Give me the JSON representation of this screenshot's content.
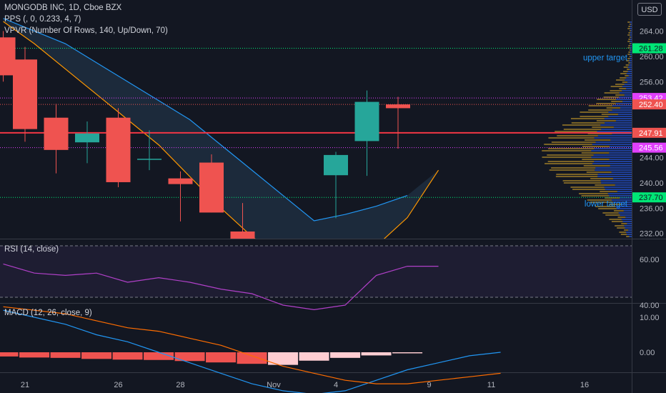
{
  "main_pane": {
    "title": "MONGODB INC, 1D, Cboe BZX",
    "indicators": [
      "PPS (, 0, 0.233, 4, 7)",
      "VPVR (Number Of Rows, 140, Up/Down, 70)"
    ],
    "currency": "USD",
    "y_ticks": [
      264.0,
      260.0,
      256.0,
      244.0,
      240.0,
      236.0,
      232.0
    ],
    "price_labels": [
      {
        "value": 261.28,
        "text": "261.28",
        "bg": "#00e676",
        "fg": "#131722"
      },
      {
        "value": 253.42,
        "text": "253.42",
        "bg": "#e040fb",
        "fg": "#ffffff"
      },
      {
        "value": 252.4,
        "text": "252.40",
        "bg": "#ef5350",
        "fg": "#ffffff"
      },
      {
        "value": 247.91,
        "text": "247.91",
        "bg": "#ef5350",
        "fg": "#ffffff"
      },
      {
        "value": 245.56,
        "text": "245.56",
        "bg": "#e040fb",
        "fg": "#ffffff"
      },
      {
        "value": 237.7,
        "text": "237.70",
        "bg": "#00e676",
        "fg": "#131722"
      }
    ],
    "annotations": [
      {
        "text": "upper target",
        "value": 259.8
      },
      {
        "text": "lower target",
        "value": 236.7
      }
    ]
  },
  "rsi_pane": {
    "title": "RSI (14, close)",
    "y_ticks": [
      "60.00",
      "40.00"
    ],
    "values": [
      58,
      54,
      53,
      54,
      50,
      52,
      50,
      47,
      45,
      40,
      38,
      40,
      53,
      57,
      57
    ]
  },
  "macd_pane": {
    "title": "MACD (12, 26, close, 9)",
    "y_ticks": [
      "10.00",
      "0.00"
    ],
    "macd": [
      12,
      10,
      8,
      5,
      3,
      0,
      -3,
      -6,
      -9,
      -11,
      -12,
      -11,
      -8,
      -5,
      -3,
      -1,
      0
    ],
    "signal": [
      13,
      12,
      11,
      9,
      7,
      6,
      4,
      2,
      -1,
      -4,
      -6,
      -8,
      -9,
      -9,
      -8,
      -7,
      -6
    ],
    "hist": [
      {
        "v": -1.2,
        "c": "#ef5350"
      },
      {
        "v": -1.5,
        "c": "#ef5350"
      },
      {
        "v": -1.6,
        "c": "#ef5350"
      },
      {
        "v": -1.9,
        "c": "#ef5350"
      },
      {
        "v": -2.1,
        "c": "#ef5350"
      },
      {
        "v": -2.2,
        "c": "#ef5350"
      },
      {
        "v": -2.5,
        "c": "#ef5350"
      },
      {
        "v": -2.9,
        "c": "#ef5350"
      },
      {
        "v": -3.3,
        "c": "#ef5350"
      },
      {
        "v": -3.6,
        "c": "#ffcdd2"
      },
      {
        "v": -2.4,
        "c": "#ffcdd2"
      },
      {
        "v": -1.6,
        "c": "#ffcdd2"
      },
      {
        "v": -0.9,
        "c": "#ffcdd2"
      },
      {
        "v": -0.3,
        "c": "#ffcdd2"
      }
    ]
  },
  "x_axis": {
    "labels": [
      {
        "text": "21",
        "i": 0
      },
      {
        "text": "26",
        "i": 3
      },
      {
        "text": "28",
        "i": 5
      },
      {
        "text": "Nov",
        "i": 8
      },
      {
        "text": "4",
        "i": 10
      },
      {
        "text": "9",
        "i": 13
      },
      {
        "text": "11",
        "i": 15
      },
      {
        "text": "16",
        "i": 18
      }
    ]
  },
  "chart_data": {
    "type": "candlestick",
    "title": "MONGODB INC, 1D, Cboe BZX",
    "ylim": [
      230,
      266
    ],
    "candles": [
      {
        "i": -0.7,
        "o": 263,
        "h": 264,
        "l": 256,
        "c": 257,
        "color": "#ef5350"
      },
      {
        "i": 0,
        "o": 259.5,
        "h": 261.5,
        "l": 246.5,
        "c": 248.5,
        "color": "#ef5350"
      },
      {
        "i": 1,
        "o": 250.3,
        "h": 252.5,
        "l": 241.5,
        "c": 245.2,
        "color": "#ef5350"
      },
      {
        "i": 2,
        "o": 246.4,
        "h": 249.7,
        "l": 243.1,
        "c": 247.8,
        "color": "#26a69a"
      },
      {
        "i": 3,
        "o": 250.3,
        "h": 251.8,
        "l": 239.3,
        "c": 240.1,
        "color": "#ef5350"
      },
      {
        "i": 4,
        "o": 243.8,
        "h": 248.3,
        "l": 242.0,
        "c": 243.8,
        "color": "#26a69a"
      },
      {
        "i": 5,
        "o": 240.7,
        "h": 241.8,
        "l": 233.9,
        "c": 239.8,
        "color": "#ef5350"
      },
      {
        "i": 6,
        "o": 243.2,
        "h": 244.5,
        "l": 235.3,
        "c": 235.3,
        "color": "#ef5350"
      },
      {
        "i": 7,
        "o": 232.3,
        "h": 236.8,
        "l": 229.5,
        "c": 229.5,
        "color": "#ef5350"
      },
      {
        "i": 10,
        "o": 241.2,
        "h": 244.9,
        "l": 234.4,
        "c": 244.4,
        "color": "#26a69a"
      },
      {
        "i": 11,
        "o": 246.6,
        "h": 254.6,
        "l": 241.1,
        "c": 252.8,
        "color": "#26a69a"
      },
      {
        "i": 12,
        "o": 252.4,
        "h": 253.6,
        "l": 245.4,
        "c": 251.8,
        "color": "#ef5350"
      }
    ],
    "upper_band": [
      266,
      264,
      262,
      259,
      256,
      253,
      250,
      246,
      242,
      238,
      234,
      235,
      236.3,
      238
    ],
    "lower_band": [
      265.5,
      262,
      258,
      254,
      250,
      246,
      241,
      236,
      231.5,
      228,
      224,
      226.5,
      230,
      234.5,
      242
    ],
    "horizontal_lines": [
      261.28,
      253.42,
      252.4,
      247.91,
      245.56,
      237.7
    ]
  }
}
